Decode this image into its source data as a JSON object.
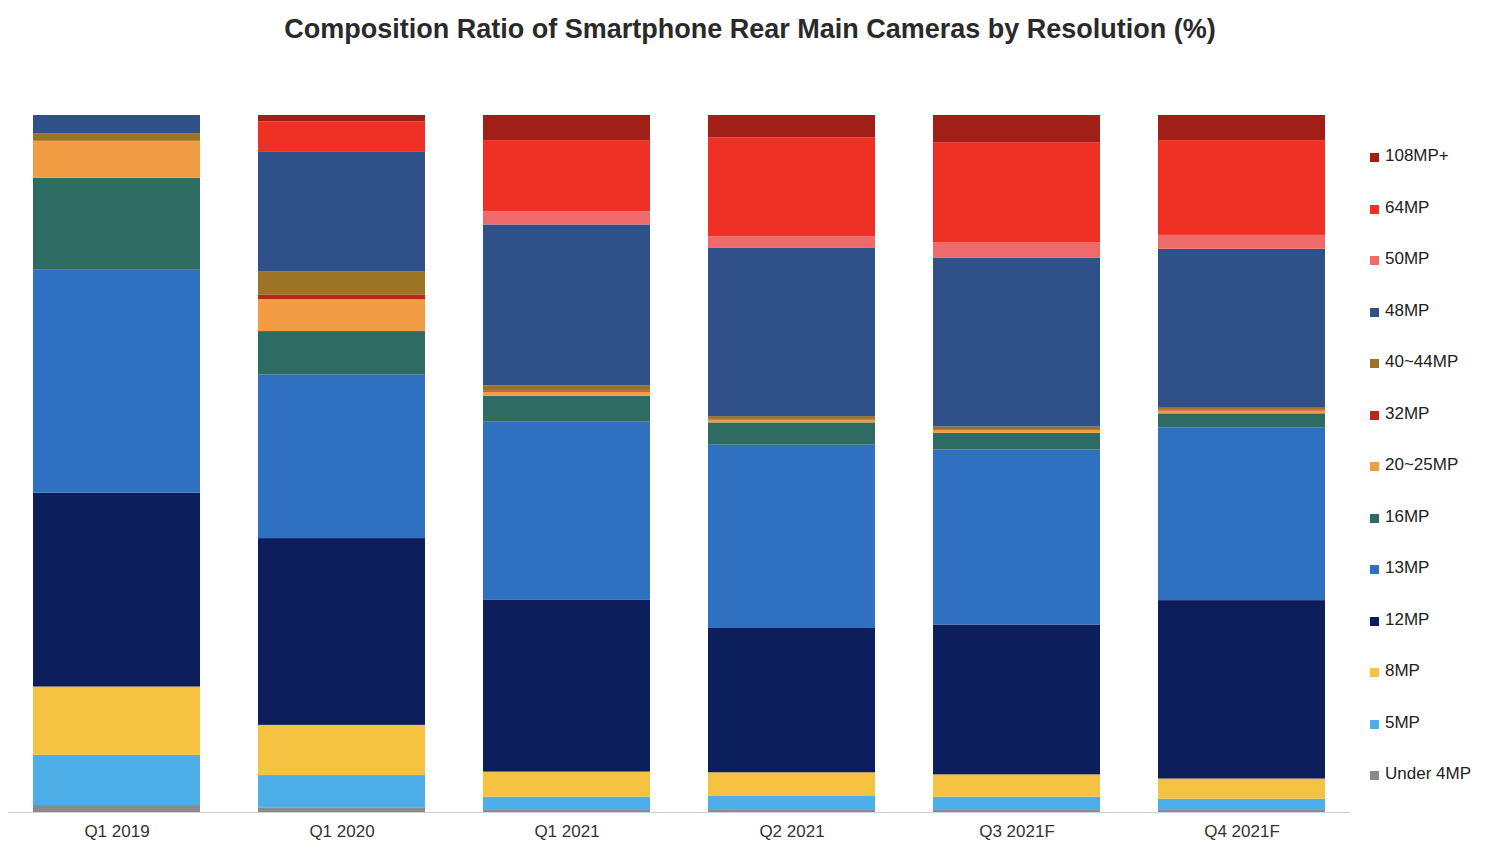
{
  "chart_data": {
    "type": "bar",
    "stacked": true,
    "title": "Composition Ratio of Smartphone Rear Main Cameras by Resolution (%)",
    "categories": [
      "Q1 2019",
      "Q1 2020",
      "Q1 2021",
      "Q2 2021",
      "Q3 2021F",
      "Q4 2021F"
    ],
    "ylim": [
      0,
      100
    ],
    "tick_labels": "x",
    "legend": "right",
    "series": [
      {
        "name": "Under 4MP",
        "color": "#8a8a8a",
        "values": [
          1.0,
          0.6,
          0.3,
          0.3,
          0.3,
          0.3
        ]
      },
      {
        "name": "5MP",
        "color": "#4daee8",
        "values": [
          7.2,
          4.7,
          1.9,
          2.0,
          1.9,
          1.6
        ]
      },
      {
        "name": "8MP",
        "color": "#f5c242",
        "values": [
          9.8,
          7.2,
          3.6,
          3.4,
          3.2,
          2.9
        ]
      },
      {
        "name": "12MP",
        "color": "#0c1f5c",
        "values": [
          27.8,
          26.8,
          24.7,
          20.7,
          21.5,
          25.6
        ]
      },
      {
        "name": "13MP",
        "color": "#3070c0",
        "values": [
          32.0,
          23.5,
          25.5,
          26.3,
          25.1,
          24.8
        ]
      },
      {
        "name": "16MP",
        "color": "#2e6b63",
        "values": [
          13.2,
          6.2,
          3.7,
          3.2,
          2.4,
          2.0
        ]
      },
      {
        "name": "20~25MP",
        "color": "#f29c43",
        "values": [
          5.3,
          4.6,
          0.6,
          0.4,
          0.4,
          0.4
        ]
      },
      {
        "name": "32MP",
        "color": "#c0231c",
        "values": [
          0,
          0.6,
          0.2,
          0.1,
          0.1,
          0.1
        ]
      },
      {
        "name": "40~44MP",
        "color": "#9a7424",
        "values": [
          1.1,
          3.4,
          0.7,
          0.4,
          0.4,
          0.4
        ]
      },
      {
        "name": "48MP",
        "color": "#2f5089",
        "values": [
          2.6,
          17.2,
          23.1,
          24.2,
          24.2,
          22.7
        ]
      },
      {
        "name": "50MP",
        "color": "#ef6b6b",
        "values": [
          0,
          0,
          1.9,
          1.6,
          2.2,
          2.0
        ]
      },
      {
        "name": "64MP",
        "color": "#ee3124",
        "values": [
          0,
          4.3,
          10.2,
          14.2,
          14.4,
          13.6
        ]
      },
      {
        "name": "108MP+",
        "color": "#a21f17",
        "values": [
          0,
          0.9,
          3.6,
          3.2,
          3.9,
          3.6
        ]
      }
    ]
  }
}
